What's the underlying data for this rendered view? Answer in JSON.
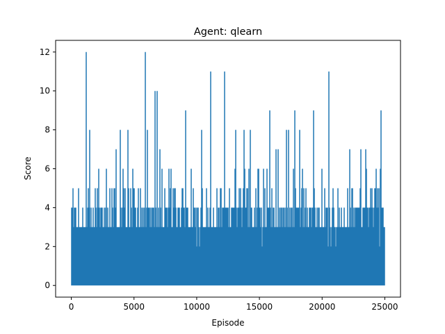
{
  "chart_data": {
    "type": "line",
    "title": "Agent: qlearn",
    "xlabel": "Episode",
    "ylabel": "Score",
    "xlim": [
      -1250,
      26250
    ],
    "ylim": [
      -0.6,
      12.6
    ],
    "xticks": [
      0,
      5000,
      10000,
      15000,
      20000,
      25000
    ],
    "xtick_labels": [
      "0",
      "5000",
      "10000",
      "15000",
      "20000",
      "25000"
    ],
    "yticks": [
      0,
      2,
      4,
      6,
      8,
      10,
      12
    ],
    "ytick_labels": [
      "0",
      "2",
      "4",
      "6",
      "8",
      "10",
      "12"
    ],
    "grid": false,
    "legend": false,
    "series_color": "#1f77b4",
    "series": [
      {
        "episodes": 25000,
        "values_range": [
          0,
          12
        ],
        "peaks": [
          {
            "x": 1200,
            "y": 12
          },
          {
            "x": 5900,
            "y": 12
          },
          {
            "x": 6700,
            "y": 10
          },
          {
            "x": 6850,
            "y": 10
          },
          {
            "x": 11100,
            "y": 11
          },
          {
            "x": 12250,
            "y": 11
          },
          {
            "x": 20550,
            "y": 11
          },
          {
            "x": 9100,
            "y": 9
          },
          {
            "x": 15800,
            "y": 9
          },
          {
            "x": 17800,
            "y": 9
          },
          {
            "x": 19300,
            "y": 9
          },
          {
            "x": 24700,
            "y": 9
          },
          {
            "x": 1450,
            "y": 8
          },
          {
            "x": 3900,
            "y": 8
          },
          {
            "x": 4500,
            "y": 8
          },
          {
            "x": 6050,
            "y": 8
          },
          {
            "x": 10400,
            "y": 8
          },
          {
            "x": 13100,
            "y": 8
          },
          {
            "x": 13800,
            "y": 8
          },
          {
            "x": 14300,
            "y": 8
          },
          {
            "x": 17150,
            "y": 8
          },
          {
            "x": 17350,
            "y": 8
          },
          {
            "x": 18200,
            "y": 8
          },
          {
            "x": 3600,
            "y": 7
          },
          {
            "x": 7050,
            "y": 7
          },
          {
            "x": 16300,
            "y": 7
          },
          {
            "x": 16500,
            "y": 7
          },
          {
            "x": 22200,
            "y": 7
          },
          {
            "x": 23500,
            "y": 7
          },
          {
            "x": 23100,
            "y": 7
          }
        ]
      }
    ]
  }
}
